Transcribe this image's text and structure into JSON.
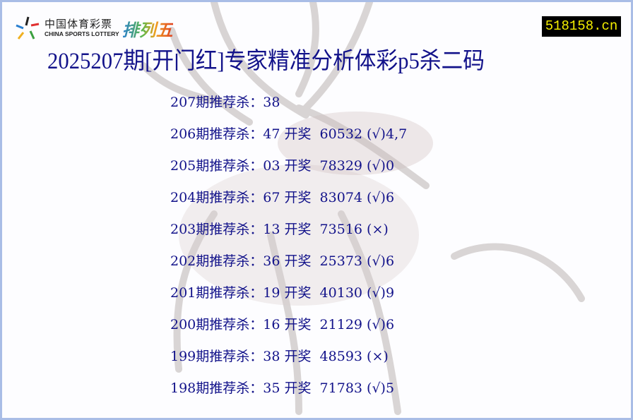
{
  "logo": {
    "cn": "中国体育彩票",
    "en": "CHINA SPORTS LOTTERY",
    "game": "排列五"
  },
  "site_badge": "518158.cn",
  "title": "2025207期[开门红]专家精准分析体彩p5杀二码",
  "rows": [
    "207期推荐杀：38",
    "206期推荐杀：47 开奖  60532 (√)4,7",
    "205期推荐杀：03 开奖  78329 (√)0",
    "204期推荐杀：67 开奖  83074 (√)6",
    "203期推荐杀：13 开奖  73516 (×)",
    "202期推荐杀：36 开奖  25373 (√)6",
    "201期推荐杀：19 开奖  40130 (√)9",
    "200期推荐杀：16 开奖  21129 (√)6",
    "199期推荐杀：38 开奖  48593 (×)",
    "198期推荐杀：35 开奖  71783 (√)5"
  ],
  "colors": {
    "text": "#12128a",
    "border": "#a9bde6",
    "badge_bg": "#000000",
    "badge_text": "#f5f000"
  }
}
